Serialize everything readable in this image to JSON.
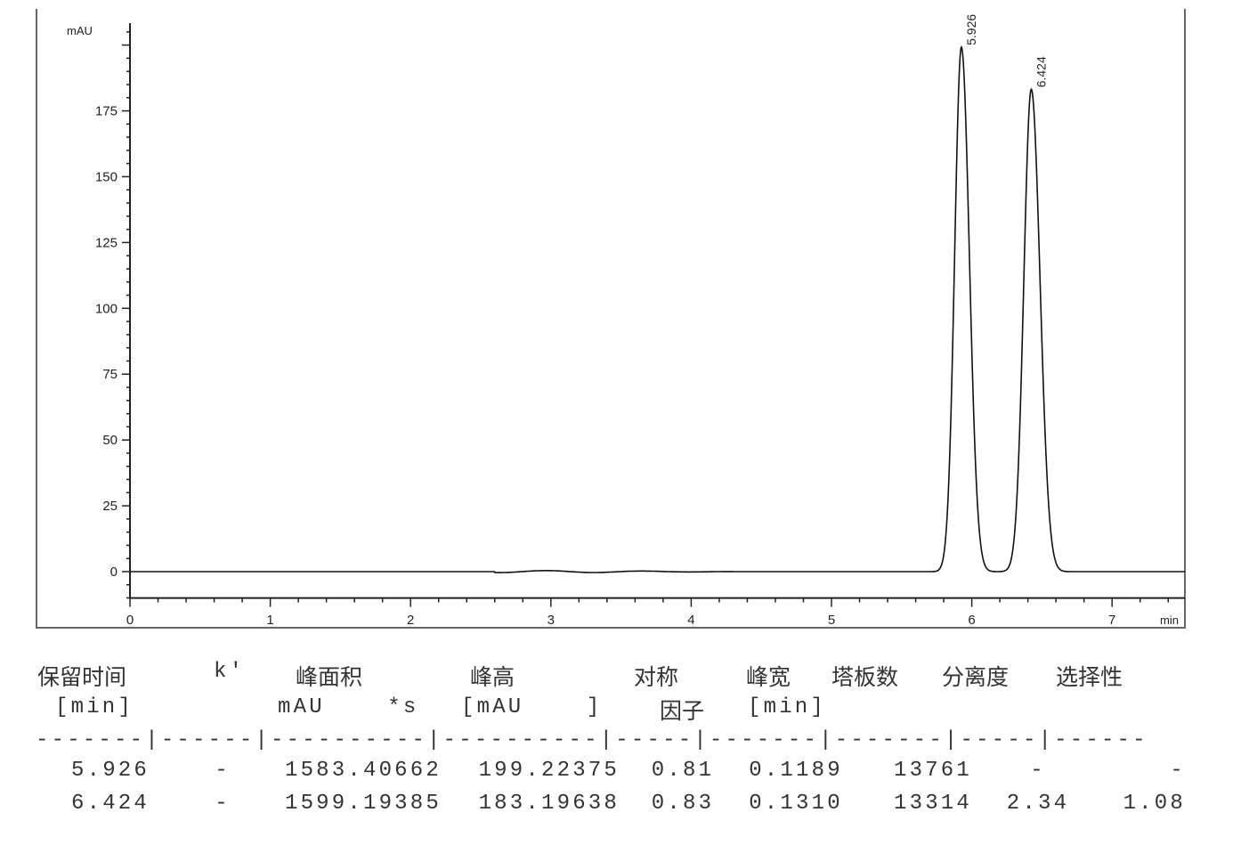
{
  "chart_data": {
    "type": "line",
    "ylabel": "mAU",
    "xlabel": "min",
    "xlim": [
      0,
      7.52
    ],
    "ylim": [
      -10,
      208
    ],
    "x_ticks": [
      0,
      1,
      2,
      3,
      4,
      5,
      6,
      7
    ],
    "y_ticks": [
      0,
      25,
      50,
      75,
      100,
      125,
      150,
      175
    ],
    "grid": false,
    "peaks": [
      {
        "retention_time": 5.926,
        "label": "5.926",
        "height": 199.22375,
        "width": 0.1189
      },
      {
        "retention_time": 6.424,
        "label": "6.424",
        "height": 183.19638,
        "width": 0.131
      }
    ],
    "line_color": "#111111"
  },
  "table": {
    "headers": [
      {
        "line1": "保留时间",
        "line2": "[min]"
      },
      {
        "line1": "k'",
        "line2": ""
      },
      {
        "line1": "峰面积",
        "line2": "mAU    *s"
      },
      {
        "line1": "峰高",
        "line2": "[mAU    ]"
      },
      {
        "line1": "对称",
        "line2": "因子"
      },
      {
        "line1": "峰宽",
        "line2": "[min]"
      },
      {
        "line1": "塔板数",
        "line2": ""
      },
      {
        "line1": "分离度",
        "line2": ""
      },
      {
        "line1": "选择性",
        "line2": ""
      }
    ],
    "separator": "-------|------|----------|----------|-----|-------|-------|-----|------",
    "rows": [
      [
        "5.926",
        "-",
        "1583.40662",
        "199.22375",
        "0.81",
        "0.1189",
        "13761",
        "-",
        "-"
      ],
      [
        "6.424",
        "-",
        "1599.19385",
        "183.19638",
        "0.83",
        "0.1310",
        "13314",
        "2.34",
        "1.08"
      ]
    ]
  }
}
